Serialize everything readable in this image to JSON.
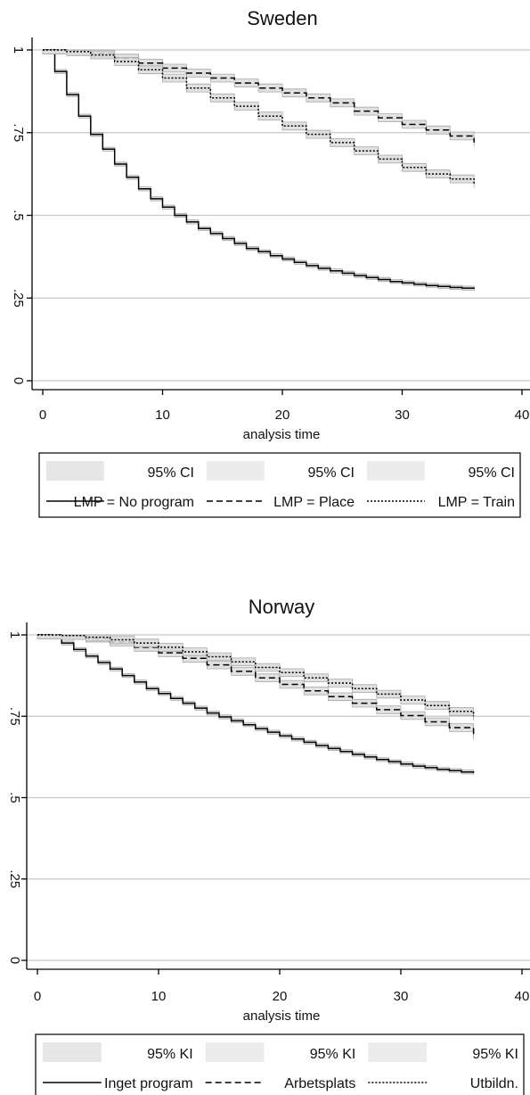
{
  "chart_data": [
    {
      "type": "line",
      "title": "Sweden",
      "xlabel": "analysis time",
      "ylabel": "",
      "xlim": [
        0,
        40
      ],
      "ylim": [
        0,
        1
      ],
      "x_ticks": [
        "0",
        "10",
        "20",
        "30",
        "40"
      ],
      "y_ticks": [
        "0",
        ".25",
        ".5",
        ".75",
        "1"
      ],
      "grid": true,
      "legend_position": "bottom",
      "legend": [
        "95% CI",
        "95% CI",
        "95% CI",
        "LMP = No program",
        "LMP = Place",
        "LMP = Train"
      ],
      "series": [
        {
          "name": "LMP = No program",
          "style": "solid",
          "x": [
            0,
            1,
            2,
            3,
            4,
            5,
            6,
            7,
            8,
            9,
            10,
            11,
            12,
            13,
            14,
            15,
            16,
            17,
            18,
            19,
            20,
            21,
            22,
            23,
            24,
            25,
            26,
            27,
            28,
            29,
            30,
            31,
            32,
            33,
            34,
            35,
            36
          ],
          "y": [
            1,
            0.935,
            0.865,
            0.8,
            0.745,
            0.7,
            0.655,
            0.615,
            0.58,
            0.55,
            0.525,
            0.5,
            0.48,
            0.46,
            0.445,
            0.43,
            0.415,
            0.4,
            0.39,
            0.378,
            0.368,
            0.358,
            0.348,
            0.34,
            0.332,
            0.325,
            0.318,
            0.312,
            0.306,
            0.3,
            0.296,
            0.292,
            0.288,
            0.285,
            0.282,
            0.28,
            0.278
          ]
        },
        {
          "name": "LMP = Place",
          "style": "dashed",
          "x": [
            0,
            2,
            4,
            6,
            8,
            10,
            12,
            14,
            16,
            18,
            20,
            22,
            24,
            26,
            28,
            30,
            32,
            34,
            36
          ],
          "y": [
            1,
            0.998,
            0.99,
            0.975,
            0.96,
            0.945,
            0.93,
            0.915,
            0.9,
            0.885,
            0.87,
            0.855,
            0.84,
            0.815,
            0.795,
            0.775,
            0.758,
            0.74,
            0.72
          ]
        },
        {
          "name": "LMP = Train",
          "style": "dotted",
          "x": [
            0,
            2,
            4,
            6,
            8,
            10,
            12,
            14,
            16,
            18,
            20,
            22,
            24,
            26,
            28,
            30,
            32,
            34,
            36
          ],
          "y": [
            1,
            0.995,
            0.985,
            0.965,
            0.94,
            0.915,
            0.885,
            0.855,
            0.83,
            0.8,
            0.77,
            0.745,
            0.72,
            0.695,
            0.67,
            0.645,
            0.625,
            0.61,
            0.595
          ]
        }
      ]
    },
    {
      "type": "line",
      "title": "Norway",
      "xlabel": "analysis time",
      "ylabel": "",
      "xlim": [
        0,
        40
      ],
      "ylim": [
        0,
        1
      ],
      "x_ticks": [
        "0",
        "10",
        "20",
        "30",
        "40"
      ],
      "y_ticks": [
        "0",
        ".25",
        ".5",
        ".75",
        "1"
      ],
      "grid": true,
      "legend_position": "bottom",
      "legend": [
        "95% KI",
        "95% KI",
        "95% KI",
        "Inget program",
        "Arbetsplats",
        "Utbildn."
      ],
      "series": [
        {
          "name": "Inget program",
          "style": "solid",
          "x": [
            0,
            1,
            2,
            3,
            4,
            5,
            6,
            7,
            8,
            9,
            10,
            11,
            12,
            13,
            14,
            15,
            16,
            17,
            18,
            19,
            20,
            21,
            22,
            23,
            24,
            25,
            26,
            27,
            28,
            29,
            30,
            31,
            32,
            33,
            34,
            35,
            36
          ],
          "y": [
            1,
            0.995,
            0.975,
            0.955,
            0.935,
            0.915,
            0.895,
            0.875,
            0.855,
            0.835,
            0.82,
            0.805,
            0.79,
            0.775,
            0.76,
            0.748,
            0.736,
            0.724,
            0.712,
            0.701,
            0.69,
            0.68,
            0.67,
            0.66,
            0.651,
            0.642,
            0.633,
            0.625,
            0.617,
            0.61,
            0.603,
            0.597,
            0.592,
            0.587,
            0.583,
            0.579,
            0.576
          ]
        },
        {
          "name": "Arbetsplats",
          "style": "dashed",
          "x": [
            0,
            2,
            4,
            6,
            8,
            10,
            12,
            14,
            16,
            18,
            20,
            22,
            24,
            26,
            28,
            30,
            32,
            34,
            36
          ],
          "y": [
            1,
            0.998,
            0.99,
            0.978,
            0.962,
            0.945,
            0.928,
            0.908,
            0.888,
            0.868,
            0.848,
            0.828,
            0.81,
            0.79,
            0.77,
            0.752,
            0.733,
            0.715,
            0.69
          ]
        },
        {
          "name": "Utbildn.",
          "style": "dotted",
          "x": [
            0,
            2,
            4,
            6,
            8,
            10,
            12,
            14,
            16,
            18,
            20,
            22,
            24,
            26,
            28,
            30,
            32,
            34,
            36
          ],
          "y": [
            1,
            0.998,
            0.993,
            0.985,
            0.975,
            0.962,
            0.948,
            0.933,
            0.917,
            0.9,
            0.884,
            0.868,
            0.852,
            0.835,
            0.818,
            0.8,
            0.783,
            0.765,
            0.75
          ]
        }
      ]
    }
  ]
}
